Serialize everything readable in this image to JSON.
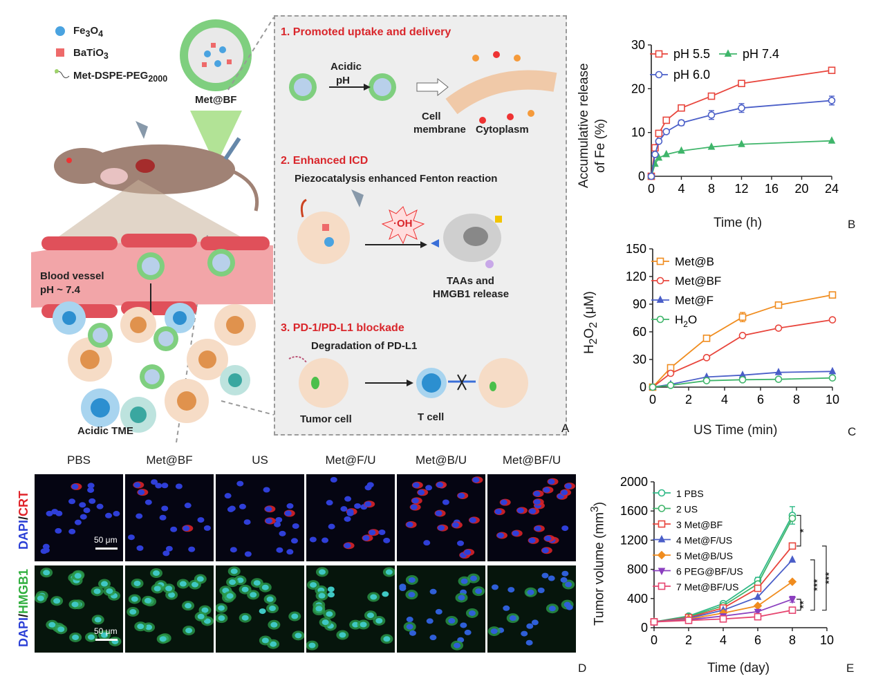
{
  "panel_letters": {
    "a": "A",
    "b": "B",
    "c": "C",
    "d": "D",
    "e": "E"
  },
  "schematic": {
    "legend": [
      "Fe3O4",
      "BaTiO3",
      "Met-DSPE-PEG2000"
    ],
    "legend_parts": {
      "fe": {
        "base": "Fe",
        "sub1": "3",
        "mid": "O",
        "sub2": "4"
      },
      "ba": {
        "base": "BaTiO",
        "sub": "3"
      },
      "peg": {
        "base": "Met-DSPE-PEG",
        "sub": "2000"
      }
    },
    "nanoparticle_label": "Met@BF",
    "blood_vessel": "Blood vessel",
    "blood_ph": "pH ~ 7.4",
    "tme": "Acidic TME",
    "section1": {
      "title": "1. Promoted uptake and delivery",
      "acidic": "Acidic",
      "ph": "pH",
      "cell": "Cell",
      "membrane": "membrane",
      "cytoplasm": "Cytoplasm"
    },
    "section2": {
      "title": "2. Enhanced ICD",
      "subtitle": "Piezocatalysis enhanced Fenton reaction",
      "oh": "·OH",
      "taas": "TAAs and",
      "hmgb1": "HMGB1 release"
    },
    "section3": {
      "title": "3. PD-1/PD-L1 blockade",
      "subtitle": "Degradation of PD-L1",
      "tumor": "Tumor cell",
      "tcell": "T cell"
    }
  },
  "colors": {
    "red": "#e8453c",
    "blue": "#4a5ec8",
    "green": "#3fb56a",
    "orange": "#f08c1e",
    "purple": "#8b3fbf",
    "pink": "#e6456f",
    "teal": "#2fb987"
  },
  "chart_data": [
    {
      "panel": "B",
      "type": "line",
      "ylabel_line1": "Accumulative release",
      "ylabel_line2": "of Fe (%)",
      "xlabel": "Time (h)",
      "xlim": [
        0,
        24
      ],
      "ylim": [
        0,
        30
      ],
      "xticks": [
        0,
        4,
        8,
        12,
        16,
        20,
        24
      ],
      "yticks": [
        0,
        10,
        20,
        30
      ],
      "legend_position": "top-left",
      "series": [
        {
          "name": "pH 5.5",
          "color": "#e8453c",
          "marker": "square",
          "x": [
            0,
            0.5,
            1,
            2,
            4,
            8,
            12,
            24
          ],
          "y": [
            0,
            6.5,
            9.8,
            12.8,
            15.6,
            18.3,
            21.2,
            24.2
          ],
          "err": [
            0,
            0,
            0,
            0,
            0,
            0.4,
            0,
            0
          ]
        },
        {
          "name": "pH 7.4",
          "color": "#3fb56a",
          "marker": "triangle",
          "x": [
            0,
            0.5,
            1,
            2,
            4,
            8,
            12,
            24
          ],
          "y": [
            0,
            2.8,
            4.2,
            5.0,
            5.8,
            6.7,
            7.3,
            8.1
          ],
          "err": [
            0,
            0,
            0,
            0,
            0,
            0,
            0,
            0
          ]
        },
        {
          "name": "pH 6.0",
          "color": "#4a5ec8",
          "marker": "circle",
          "x": [
            0,
            0.5,
            1,
            2,
            4,
            8,
            12,
            24
          ],
          "y": [
            0,
            5.0,
            8.0,
            10.2,
            12.2,
            14.0,
            15.6,
            17.3
          ],
          "err": [
            0,
            0,
            0,
            0,
            0.6,
            1.0,
            1.0,
            1.0
          ]
        }
      ]
    },
    {
      "panel": "C",
      "type": "line",
      "ylabel": "H2O2 (μM)",
      "ylabel_parts": {
        "a": "H",
        "s1": "2",
        "b": "O",
        "s2": "2",
        "c": " (μM)"
      },
      "xlabel": "US Time (min)",
      "xlim": [
        0,
        10
      ],
      "ylim": [
        0,
        150
      ],
      "xticks": [
        0,
        2,
        4,
        6,
        8,
        10
      ],
      "yticks": [
        0,
        30,
        60,
        90,
        120,
        150
      ],
      "legend_position": "top-left",
      "series": [
        {
          "name": "Met@B",
          "color": "#f08c1e",
          "marker": "square",
          "x": [
            0,
            1,
            3,
            5,
            7,
            10
          ],
          "y": [
            0,
            21,
            53,
            76,
            89,
            100
          ],
          "err": [
            0,
            0,
            0,
            5,
            0,
            2
          ]
        },
        {
          "name": "Met@BF",
          "color": "#e8453c",
          "marker": "circle",
          "x": [
            0,
            1,
            3,
            5,
            7,
            10
          ],
          "y": [
            0,
            15,
            32,
            56,
            64,
            73
          ],
          "err": [
            0,
            0,
            0,
            0,
            0,
            0
          ]
        },
        {
          "name": "Met@F",
          "color": "#4a5ec8",
          "marker": "triangle",
          "x": [
            0,
            1,
            3,
            5,
            7,
            10
          ],
          "y": [
            0,
            3,
            11,
            13,
            16,
            17
          ],
          "err": [
            0,
            0,
            0,
            0,
            0,
            0
          ]
        },
        {
          "name": "H2O",
          "color": "#3fb56a",
          "marker": "circle",
          "x": [
            0,
            1,
            3,
            5,
            7,
            10
          ],
          "y": [
            0,
            2,
            7,
            8,
            8.5,
            10
          ],
          "err": [
            0,
            0,
            0,
            0,
            0,
            0
          ]
        }
      ],
      "legend_parts_h2o": {
        "a": "H",
        "s": "2",
        "b": "O"
      }
    },
    {
      "panel": "E",
      "type": "line",
      "ylabel": "Tumor volume (mm3)",
      "ylabel_parts": {
        "a": "Tumor volume (mm",
        "sup": "3",
        "b": ")"
      },
      "xlabel": "Time (day)",
      "xlim": [
        0,
        10
      ],
      "ylim": [
        0,
        2000
      ],
      "xticks": [
        0,
        2,
        4,
        6,
        8,
        10
      ],
      "yticks": [
        0,
        400,
        800,
        1200,
        1600,
        2000
      ],
      "legend_position": "top-left",
      "significance": [
        "*",
        "***",
        "***",
        "**"
      ],
      "series": [
        {
          "name": "1 PBS",
          "color": "#2fb987",
          "marker": "circle",
          "x": [
            0,
            2,
            4,
            6,
            8
          ],
          "y": [
            80,
            160,
            330,
            650,
            1540
          ],
          "err": [
            0,
            0,
            0,
            40,
            120
          ]
        },
        {
          "name": "2 US",
          "color": "#3fb56a",
          "marker": "circle",
          "x": [
            0,
            2,
            4,
            6,
            8
          ],
          "y": [
            80,
            150,
            300,
            600,
            1500
          ],
          "err": [
            0,
            0,
            0,
            0,
            0
          ]
        },
        {
          "name": "3 Met@BF",
          "color": "#e8453c",
          "marker": "square",
          "x": [
            0,
            2,
            4,
            6,
            8
          ],
          "y": [
            80,
            140,
            270,
            540,
            1120
          ],
          "err": [
            0,
            0,
            0,
            0,
            40
          ]
        },
        {
          "name": "4 Met@F/US",
          "color": "#4a5ec8",
          "marker": "triangle",
          "x": [
            0,
            2,
            4,
            6,
            8
          ],
          "y": [
            80,
            130,
            240,
            420,
            930
          ],
          "err": [
            0,
            0,
            0,
            0,
            0
          ]
        },
        {
          "name": "5 Met@B/US",
          "color": "#f08c1e",
          "marker": "diamond",
          "x": [
            0,
            2,
            4,
            6,
            8
          ],
          "y": [
            80,
            120,
            200,
            300,
            630
          ],
          "err": [
            0,
            0,
            0,
            0,
            0
          ]
        },
        {
          "name": "6 PEG@BF/US",
          "color": "#8b3fbf",
          "marker": "triangle-down",
          "x": [
            0,
            2,
            4,
            6,
            8
          ],
          "y": [
            80,
            110,
            160,
            220,
            390
          ],
          "err": [
            0,
            0,
            0,
            0,
            40
          ]
        },
        {
          "name": "7 Met@BF/US",
          "color": "#e6456f",
          "marker": "square",
          "x": [
            0,
            2,
            4,
            6,
            8
          ],
          "y": [
            80,
            100,
            120,
            150,
            240
          ],
          "err": [
            0,
            0,
            0,
            0,
            0
          ]
        }
      ]
    }
  ],
  "microscopy": {
    "columns": [
      "PBS",
      "Met@BF",
      "US",
      "Met@F/U",
      "Met@B/U",
      "Met@BF/U"
    ],
    "row1": {
      "stain_a": "DAPI",
      "slash": "/",
      "stain_b": "CRT"
    },
    "row2": {
      "stain_a": "DAPI",
      "slash": "/",
      "stain_b": "HMGB1"
    },
    "scale_bar": "50 μm"
  }
}
